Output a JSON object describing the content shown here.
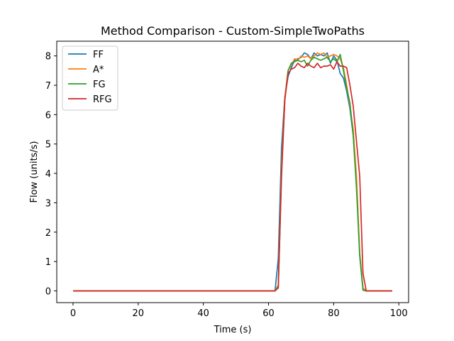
{
  "chart_data": {
    "type": "line",
    "title": "Method Comparison - Custom-SimpleTwoPaths",
    "xlabel": "Time (s)",
    "ylabel": "Flow (units/s)",
    "xlim": [
      -5,
      103
    ],
    "ylim": [
      -0.4,
      8.5
    ],
    "xticks": [
      0,
      20,
      40,
      60,
      80,
      100
    ],
    "yticks": [
      0,
      1,
      2,
      3,
      4,
      5,
      6,
      7,
      8
    ],
    "grid": false,
    "legend_position": "top-left",
    "series": [
      {
        "name": "FF",
        "color": "#1f77b4",
        "points": [
          [
            0,
            0
          ],
          [
            62,
            0
          ],
          [
            63,
            1.1
          ],
          [
            64,
            4.9
          ],
          [
            65,
            6.6
          ],
          [
            66,
            7.3
          ],
          [
            67,
            7.6
          ],
          [
            68,
            7.85
          ],
          [
            69,
            7.9
          ],
          [
            70,
            7.95
          ],
          [
            71,
            8.1
          ],
          [
            72,
            8.05
          ],
          [
            73,
            7.9
          ],
          [
            74,
            8.1
          ],
          [
            75,
            8.0
          ],
          [
            76,
            8.05
          ],
          [
            77,
            8.0
          ],
          [
            78,
            8.1
          ],
          [
            79,
            7.75
          ],
          [
            80,
            8.0
          ],
          [
            81,
            7.85
          ],
          [
            82,
            7.4
          ],
          [
            83,
            7.25
          ],
          [
            84,
            6.8
          ],
          [
            85,
            6.2
          ],
          [
            86,
            5.3
          ],
          [
            87,
            3.8
          ],
          [
            88,
            1.2
          ],
          [
            89,
            0.05
          ],
          [
            90,
            0
          ],
          [
            98,
            0
          ]
        ]
      },
      {
        "name": "A*",
        "color": "#ff7f0e",
        "points": [
          [
            0,
            0
          ],
          [
            62,
            0
          ],
          [
            63,
            0.2
          ],
          [
            64,
            4.3
          ],
          [
            65,
            6.6
          ],
          [
            66,
            7.5
          ],
          [
            67,
            7.7
          ],
          [
            68,
            7.9
          ],
          [
            69,
            7.85
          ],
          [
            70,
            8.0
          ],
          [
            71,
            7.95
          ],
          [
            72,
            8.0
          ],
          [
            73,
            7.9
          ],
          [
            74,
            8.0
          ],
          [
            75,
            8.1
          ],
          [
            76,
            8.05
          ],
          [
            77,
            8.1
          ],
          [
            78,
            7.95
          ],
          [
            79,
            8.0
          ],
          [
            80,
            8.05
          ],
          [
            81,
            8.0
          ],
          [
            82,
            7.9
          ],
          [
            83,
            7.6
          ],
          [
            84,
            7.0
          ],
          [
            85,
            6.3
          ],
          [
            86,
            5.5
          ],
          [
            87,
            3.9
          ],
          [
            88,
            1.3
          ],
          [
            89,
            0.1
          ],
          [
            90,
            0
          ],
          [
            98,
            0
          ]
        ]
      },
      {
        "name": "FG",
        "color": "#2ca02c",
        "points": [
          [
            0,
            0
          ],
          [
            62,
            0
          ],
          [
            63,
            0.15
          ],
          [
            64,
            4.1
          ],
          [
            65,
            6.5
          ],
          [
            66,
            7.5
          ],
          [
            67,
            7.75
          ],
          [
            68,
            7.8
          ],
          [
            69,
            7.85
          ],
          [
            70,
            7.8
          ],
          [
            71,
            7.85
          ],
          [
            72,
            7.65
          ],
          [
            73,
            7.85
          ],
          [
            74,
            7.95
          ],
          [
            75,
            7.9
          ],
          [
            76,
            7.85
          ],
          [
            77,
            7.9
          ],
          [
            78,
            7.95
          ],
          [
            79,
            7.8
          ],
          [
            80,
            7.9
          ],
          [
            81,
            7.8
          ],
          [
            82,
            8.05
          ],
          [
            83,
            7.5
          ],
          [
            84,
            6.9
          ],
          [
            85,
            6.4
          ],
          [
            86,
            5.3
          ],
          [
            87,
            3.5
          ],
          [
            88,
            1.2
          ],
          [
            89,
            0.02
          ],
          [
            90,
            0
          ],
          [
            98,
            0
          ]
        ]
      },
      {
        "name": "RFG",
        "color": "#d62728",
        "points": [
          [
            0,
            0
          ],
          [
            62,
            0
          ],
          [
            63,
            0.1
          ],
          [
            64,
            3.9
          ],
          [
            65,
            6.5
          ],
          [
            66,
            7.4
          ],
          [
            67,
            7.55
          ],
          [
            68,
            7.6
          ],
          [
            69,
            7.75
          ],
          [
            70,
            7.65
          ],
          [
            71,
            7.6
          ],
          [
            72,
            7.75
          ],
          [
            73,
            7.65
          ],
          [
            74,
            7.6
          ],
          [
            75,
            7.75
          ],
          [
            76,
            7.6
          ],
          [
            77,
            7.65
          ],
          [
            78,
            7.65
          ],
          [
            79,
            7.7
          ],
          [
            80,
            7.55
          ],
          [
            81,
            7.8
          ],
          [
            82,
            7.65
          ],
          [
            83,
            7.65
          ],
          [
            84,
            7.6
          ],
          [
            85,
            7.0
          ],
          [
            86,
            6.3
          ],
          [
            87,
            5.1
          ],
          [
            88,
            3.9
          ],
          [
            89,
            0.6
          ],
          [
            90,
            0
          ],
          [
            98,
            0
          ]
        ]
      }
    ]
  }
}
